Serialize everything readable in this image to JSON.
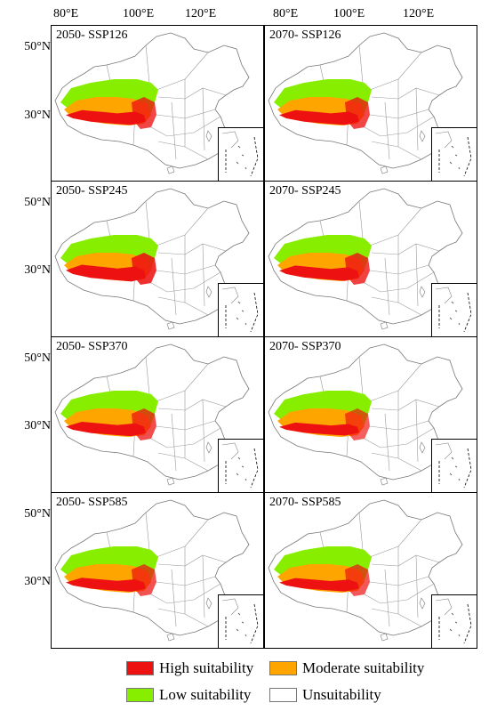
{
  "longitude_labels": [
    "80°E",
    "100°E",
    "120°E"
  ],
  "latitude_labels": [
    "50°N",
    "30°N"
  ],
  "panels": [
    {
      "title": "2050- SSP126",
      "high_extent": 0.55
    },
    {
      "title": "2070- SSP126",
      "high_extent": 0.55
    },
    {
      "title": "2050- SSP245",
      "high_extent": 0.75
    },
    {
      "title": "2070- SSP245",
      "high_extent": 0.6
    },
    {
      "title": "2050- SSP370",
      "high_extent": 0.5
    },
    {
      "title": "2070- SSP370",
      "high_extent": 0.35
    },
    {
      "title": "2050- SSP585",
      "high_extent": 0.45
    },
    {
      "title": "2070- SSP585",
      "high_extent": 0.4
    }
  ],
  "legend": [
    {
      "label": "High suitability",
      "color": "#ee1111"
    },
    {
      "label": "Moderate suitability",
      "color": "#ffa500"
    },
    {
      "label": "Low suitability",
      "color": "#88ee00"
    },
    {
      "label": "Unsuitability",
      "color": "#ffffff"
    }
  ]
}
